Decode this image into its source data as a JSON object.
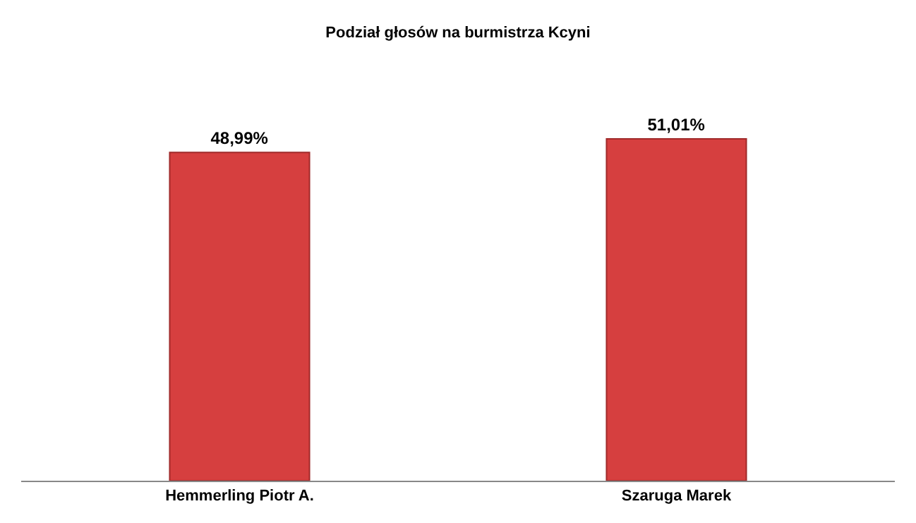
{
  "chart_data": {
    "type": "bar",
    "title": "Podział głosów na burmistrza Kcyni",
    "categories": [
      "Hemmerling Piotr A.",
      "Szaruga Marek"
    ],
    "values": [
      48.99,
      51.01
    ],
    "value_labels": [
      "48,99%",
      "51,01%"
    ],
    "color": "#d63f3f",
    "legend": false
  }
}
